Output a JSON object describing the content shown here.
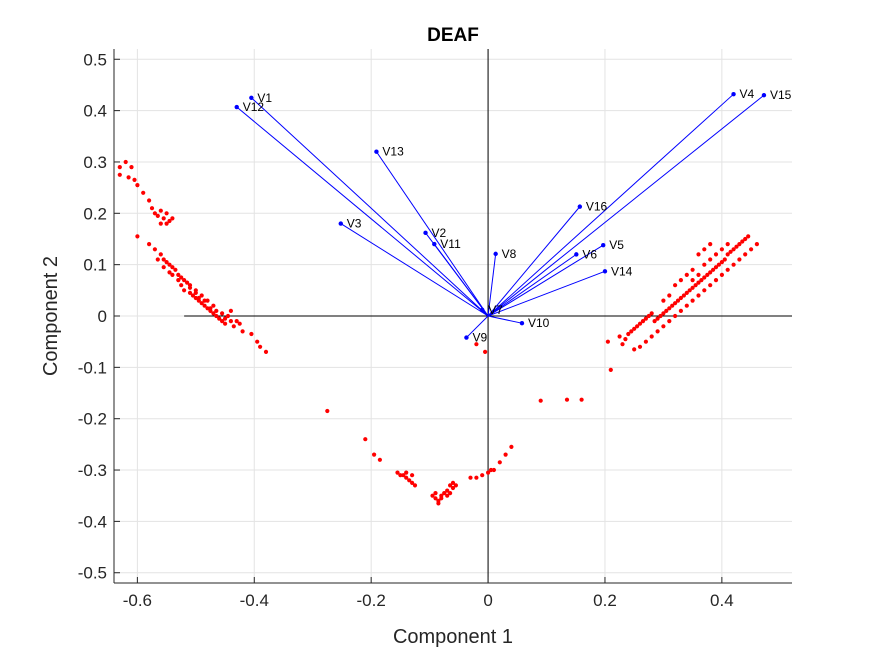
{
  "chart_data": {
    "type": "scatter",
    "title": "DEAF",
    "xlabel": "Component 1",
    "ylabel": "Component 2",
    "xlim": [
      -0.64,
      0.52
    ],
    "ylim": [
      -0.52,
      0.52
    ],
    "xticks": [
      -0.6,
      -0.4,
      -0.2,
      0,
      0.2,
      0.4
    ],
    "xtick_labels": [
      "-0.6",
      "-0.4",
      "-0.2",
      "0",
      "0.2",
      "0.4"
    ],
    "yticks": [
      -0.5,
      -0.4,
      -0.3,
      -0.2,
      -0.1,
      0,
      0.1,
      0.2,
      0.3,
      0.4,
      0.5
    ],
    "ytick_labels": [
      "-0.5",
      "-0.4",
      "-0.3",
      "-0.2",
      "-0.1",
      "0",
      "0.1",
      "0.2",
      "0.3",
      "0.4",
      "0.5"
    ],
    "grid": true,
    "vector_color": "#0000ff",
    "point_color": "#ff0000",
    "vectors": [
      {
        "label": "V1",
        "x": -0.405,
        "y": 0.425
      },
      {
        "label": "V12",
        "x": -0.43,
        "y": 0.407
      },
      {
        "label": "V13",
        "x": -0.191,
        "y": 0.32
      },
      {
        "label": "V3",
        "x": -0.252,
        "y": 0.18
      },
      {
        "label": "V2",
        "x": -0.107,
        "y": 0.162
      },
      {
        "label": "V11",
        "x": -0.092,
        "y": 0.14
      },
      {
        "label": "V8",
        "x": 0.013,
        "y": 0.121
      },
      {
        "label": "V7",
        "x": -0.01,
        "y": 0.012
      },
      {
        "label": "V9",
        "x": -0.037,
        "y": -0.042
      },
      {
        "label": "V10",
        "x": 0.058,
        "y": -0.014
      },
      {
        "label": "V16",
        "x": 0.157,
        "y": 0.213
      },
      {
        "label": "V6",
        "x": 0.151,
        "y": 0.12
      },
      {
        "label": "V5",
        "x": 0.197,
        "y": 0.138
      },
      {
        "label": "V14",
        "x": 0.2,
        "y": 0.087
      },
      {
        "label": "V4",
        "x": 0.42,
        "y": 0.432
      },
      {
        "label": "V15",
        "x": 0.472,
        "y": 0.43
      }
    ],
    "points": [
      [
        -0.63,
        0.29
      ],
      [
        -0.62,
        0.3
      ],
      [
        -0.63,
        0.275
      ],
      [
        -0.615,
        0.27
      ],
      [
        -0.605,
        0.265
      ],
      [
        -0.61,
        0.29
      ],
      [
        -0.6,
        0.255
      ],
      [
        -0.59,
        0.24
      ],
      [
        -0.58,
        0.225
      ],
      [
        -0.575,
        0.21
      ],
      [
        -0.57,
        0.2
      ],
      [
        -0.565,
        0.195
      ],
      [
        -0.56,
        0.205
      ],
      [
        -0.555,
        0.19
      ],
      [
        -0.55,
        0.2
      ],
      [
        -0.545,
        0.185
      ],
      [
        -0.54,
        0.19
      ],
      [
        -0.56,
        0.18
      ],
      [
        -0.55,
        0.18
      ],
      [
        -0.6,
        0.155
      ],
      [
        -0.58,
        0.14
      ],
      [
        -0.57,
        0.13
      ],
      [
        -0.56,
        0.12
      ],
      [
        -0.555,
        0.11
      ],
      [
        -0.55,
        0.105
      ],
      [
        -0.545,
        0.1
      ],
      [
        -0.54,
        0.095
      ],
      [
        -0.535,
        0.09
      ],
      [
        -0.53,
        0.08
      ],
      [
        -0.525,
        0.075
      ],
      [
        -0.52,
        0.07
      ],
      [
        -0.515,
        0.065
      ],
      [
        -0.51,
        0.06
      ],
      [
        -0.52,
        0.05
      ],
      [
        -0.51,
        0.045
      ],
      [
        -0.505,
        0.04
      ],
      [
        -0.5,
        0.035
      ],
      [
        -0.495,
        0.03
      ],
      [
        -0.49,
        0.025
      ],
      [
        -0.485,
        0.02
      ],
      [
        -0.48,
        0.015
      ],
      [
        -0.475,
        0.01
      ],
      [
        -0.47,
        0.005
      ],
      [
        -0.465,
        0.0
      ],
      [
        -0.46,
        -0.005
      ],
      [
        -0.455,
        -0.01
      ],
      [
        -0.45,
        -0.015
      ],
      [
        -0.445,
        0.0
      ],
      [
        -0.44,
        -0.01
      ],
      [
        -0.435,
        -0.02
      ],
      [
        -0.43,
        -0.01
      ],
      [
        -0.44,
        0.01
      ],
      [
        -0.455,
        0.005
      ],
      [
        -0.47,
        0.02
      ],
      [
        -0.48,
        0.03
      ],
      [
        -0.49,
        0.04
      ],
      [
        -0.5,
        0.05
      ],
      [
        -0.51,
        0.055
      ],
      [
        -0.525,
        0.06
      ],
      [
        -0.53,
        0.07
      ],
      [
        -0.54,
        0.08
      ],
      [
        -0.545,
        0.085
      ],
      [
        -0.555,
        0.095
      ],
      [
        -0.565,
        0.11
      ],
      [
        -0.5,
        0.045
      ],
      [
        -0.495,
        0.035
      ],
      [
        -0.485,
        0.03
      ],
      [
        -0.475,
        0.015
      ],
      [
        -0.465,
        0.01
      ],
      [
        -0.45,
        -0.005
      ],
      [
        -0.425,
        -0.015
      ],
      [
        -0.42,
        -0.03
      ],
      [
        -0.405,
        -0.035
      ],
      [
        -0.395,
        -0.05
      ],
      [
        -0.39,
        -0.06
      ],
      [
        -0.38,
        -0.07
      ],
      [
        0.21,
        -0.105
      ],
      [
        0.205,
        -0.05
      ],
      [
        0.225,
        -0.04
      ],
      [
        0.23,
        -0.055
      ],
      [
        0.235,
        -0.045
      ],
      [
        0.24,
        -0.035
      ],
      [
        0.245,
        -0.03
      ],
      [
        0.25,
        -0.025
      ],
      [
        0.255,
        -0.02
      ],
      [
        0.26,
        -0.015
      ],
      [
        0.265,
        -0.01
      ],
      [
        0.27,
        -0.005
      ],
      [
        0.275,
        0.0
      ],
      [
        0.28,
        0.005
      ],
      [
        0.285,
        -0.01
      ],
      [
        0.29,
        -0.005
      ],
      [
        0.295,
        0.0
      ],
      [
        0.3,
        0.005
      ],
      [
        0.305,
        0.01
      ],
      [
        0.31,
        0.015
      ],
      [
        0.315,
        0.02
      ],
      [
        0.32,
        0.025
      ],
      [
        0.325,
        0.03
      ],
      [
        0.33,
        0.035
      ],
      [
        0.335,
        0.04
      ],
      [
        0.34,
        0.045
      ],
      [
        0.345,
        0.05
      ],
      [
        0.35,
        0.055
      ],
      [
        0.355,
        0.06
      ],
      [
        0.36,
        0.065
      ],
      [
        0.365,
        0.07
      ],
      [
        0.37,
        0.075
      ],
      [
        0.375,
        0.08
      ],
      [
        0.38,
        0.085
      ],
      [
        0.385,
        0.09
      ],
      [
        0.39,
        0.095
      ],
      [
        0.395,
        0.1
      ],
      [
        0.4,
        0.105
      ],
      [
        0.405,
        0.11
      ],
      [
        0.41,
        0.12
      ],
      [
        0.415,
        0.125
      ],
      [
        0.42,
        0.13
      ],
      [
        0.425,
        0.135
      ],
      [
        0.43,
        0.14
      ],
      [
        0.435,
        0.145
      ],
      [
        0.44,
        0.15
      ],
      [
        0.445,
        0.155
      ],
      [
        0.46,
        0.14
      ],
      [
        0.45,
        0.13
      ],
      [
        0.44,
        0.12
      ],
      [
        0.43,
        0.11
      ],
      [
        0.42,
        0.1
      ],
      [
        0.41,
        0.09
      ],
      [
        0.4,
        0.08
      ],
      [
        0.39,
        0.07
      ],
      [
        0.38,
        0.06
      ],
      [
        0.37,
        0.05
      ],
      [
        0.36,
        0.04
      ],
      [
        0.35,
        0.03
      ],
      [
        0.34,
        0.02
      ],
      [
        0.33,
        0.01
      ],
      [
        0.32,
        0.0
      ],
      [
        0.31,
        -0.01
      ],
      [
        0.3,
        -0.02
      ],
      [
        0.29,
        -0.03
      ],
      [
        0.28,
        -0.04
      ],
      [
        0.27,
        -0.05
      ],
      [
        0.26,
        -0.06
      ],
      [
        0.25,
        -0.065
      ],
      [
        0.36,
        0.12
      ],
      [
        0.37,
        0.13
      ],
      [
        0.38,
        0.14
      ],
      [
        0.35,
        0.09
      ],
      [
        0.34,
        0.08
      ],
      [
        0.33,
        0.07
      ],
      [
        0.32,
        0.06
      ],
      [
        0.31,
        0.04
      ],
      [
        0.3,
        0.03
      ],
      [
        0.37,
        0.1
      ],
      [
        0.38,
        0.11
      ],
      [
        0.39,
        0.12
      ],
      [
        0.4,
        0.13
      ],
      [
        0.41,
        0.14
      ],
      [
        0.35,
        0.07
      ],
      [
        0.36,
        0.08
      ],
      [
        -0.275,
        -0.185
      ],
      [
        -0.21,
        -0.24
      ],
      [
        -0.195,
        -0.27
      ],
      [
        -0.185,
        -0.28
      ],
      [
        -0.155,
        -0.305
      ],
      [
        -0.15,
        -0.31
      ],
      [
        -0.145,
        -0.31
      ],
      [
        -0.14,
        -0.315
      ],
      [
        -0.135,
        -0.32
      ],
      [
        -0.13,
        -0.325
      ],
      [
        -0.125,
        -0.33
      ],
      [
        -0.14,
        -0.305
      ],
      [
        -0.13,
        -0.31
      ],
      [
        -0.095,
        -0.35
      ],
      [
        -0.09,
        -0.355
      ],
      [
        -0.085,
        -0.36
      ],
      [
        -0.08,
        -0.35
      ],
      [
        -0.075,
        -0.345
      ],
      [
        -0.07,
        -0.34
      ],
      [
        -0.065,
        -0.33
      ],
      [
        -0.06,
        -0.335
      ],
      [
        -0.09,
        -0.345
      ],
      [
        -0.08,
        -0.355
      ],
      [
        -0.07,
        -0.35
      ],
      [
        -0.065,
        -0.345
      ],
      [
        -0.085,
        -0.365
      ],
      [
        -0.055,
        -0.33
      ],
      [
        -0.06,
        -0.325
      ],
      [
        -0.02,
        -0.315
      ],
      [
        -0.01,
        -0.31
      ],
      [
        0.0,
        -0.305
      ],
      [
        0.005,
        -0.3
      ],
      [
        0.01,
        -0.3
      ],
      [
        0.02,
        -0.285
      ],
      [
        0.03,
        -0.27
      ],
      [
        0.04,
        -0.255
      ],
      [
        -0.03,
        -0.315
      ],
      [
        0.09,
        -0.165
      ],
      [
        0.135,
        -0.163
      ],
      [
        0.16,
        -0.163
      ],
      [
        -0.005,
        -0.07
      ],
      [
        -0.02,
        -0.055
      ]
    ]
  }
}
